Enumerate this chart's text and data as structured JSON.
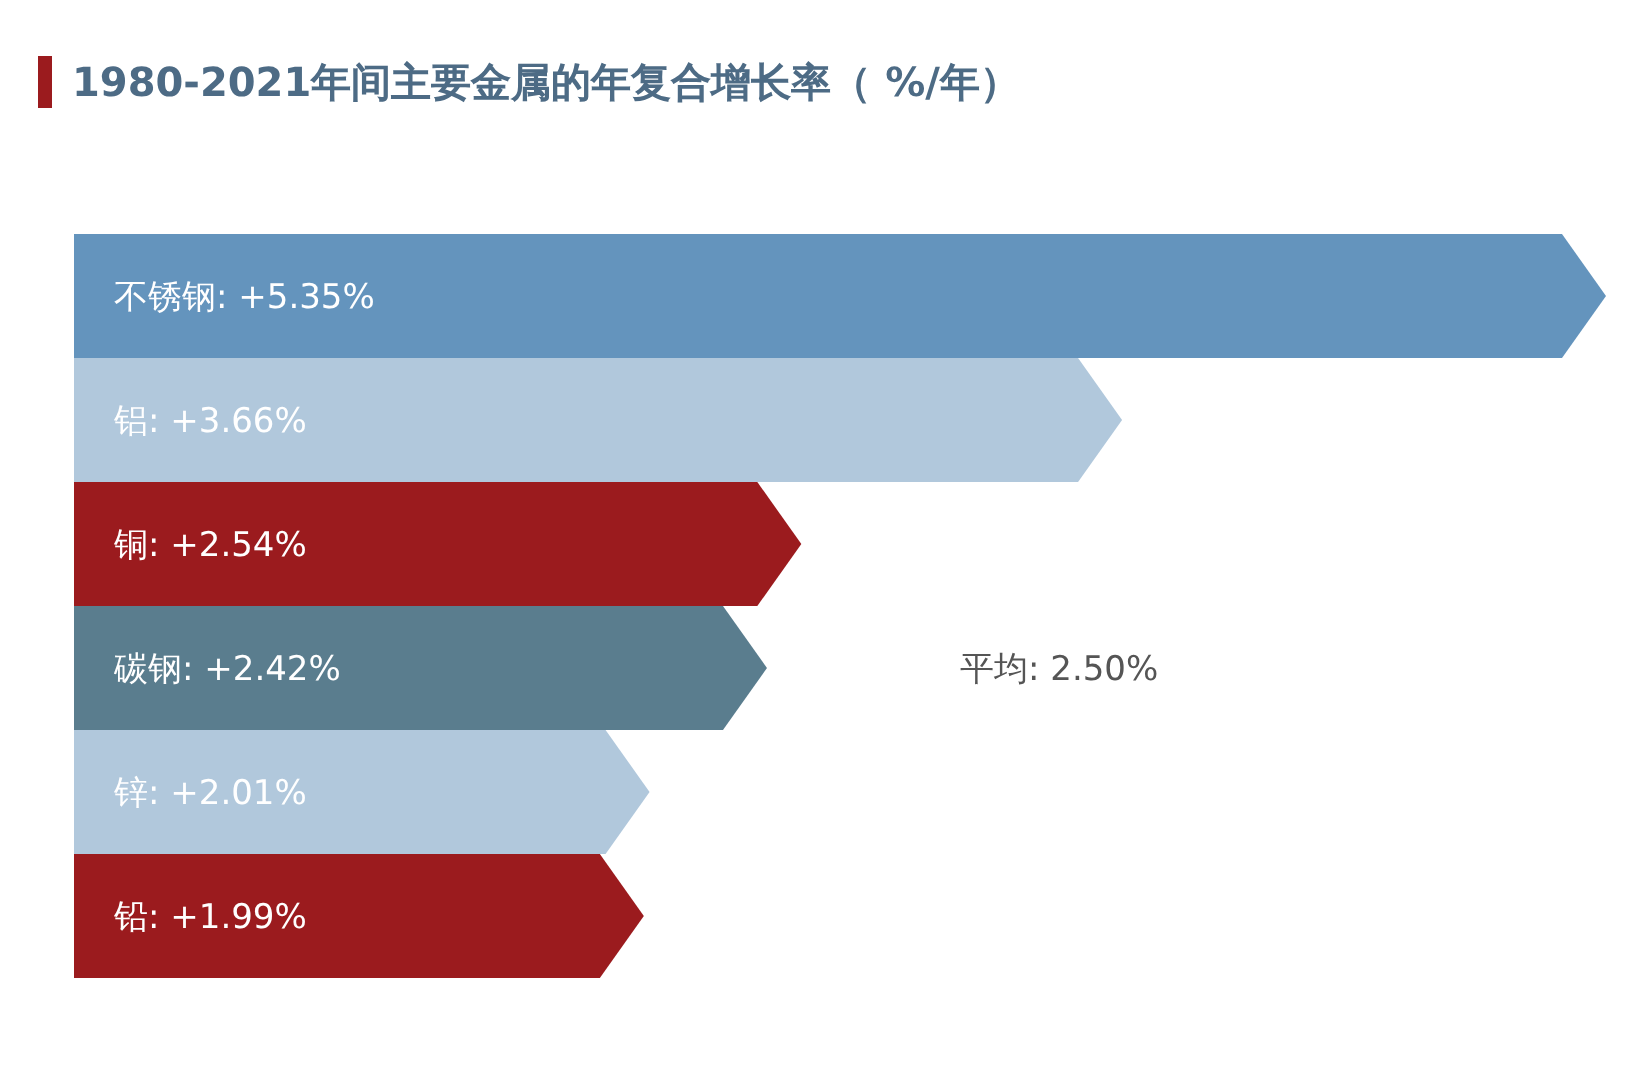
{
  "chart_data": {
    "type": "bar",
    "orientation": "horizontal",
    "title": "1980-2021年间主要金属的年复合增长率（ %/年）",
    "categories": [
      "不锈钢",
      "铝",
      "铜",
      "碳钢",
      "锌",
      "铅"
    ],
    "values": [
      5.35,
      3.66,
      2.54,
      2.42,
      2.01,
      1.99
    ],
    "value_labels": [
      ": +5.35%",
      ": +3.66%",
      ": +2.54%",
      ": +2.42%",
      ": +2.01%",
      ": +1.99%"
    ],
    "colors": [
      "#6494bd",
      "#b1c8dc",
      "#9b1b1e",
      "#5a7d8e",
      "#b1c8dc",
      "#9b1b1e"
    ],
    "annotations": [
      "平均: 2.50%"
    ]
  }
}
